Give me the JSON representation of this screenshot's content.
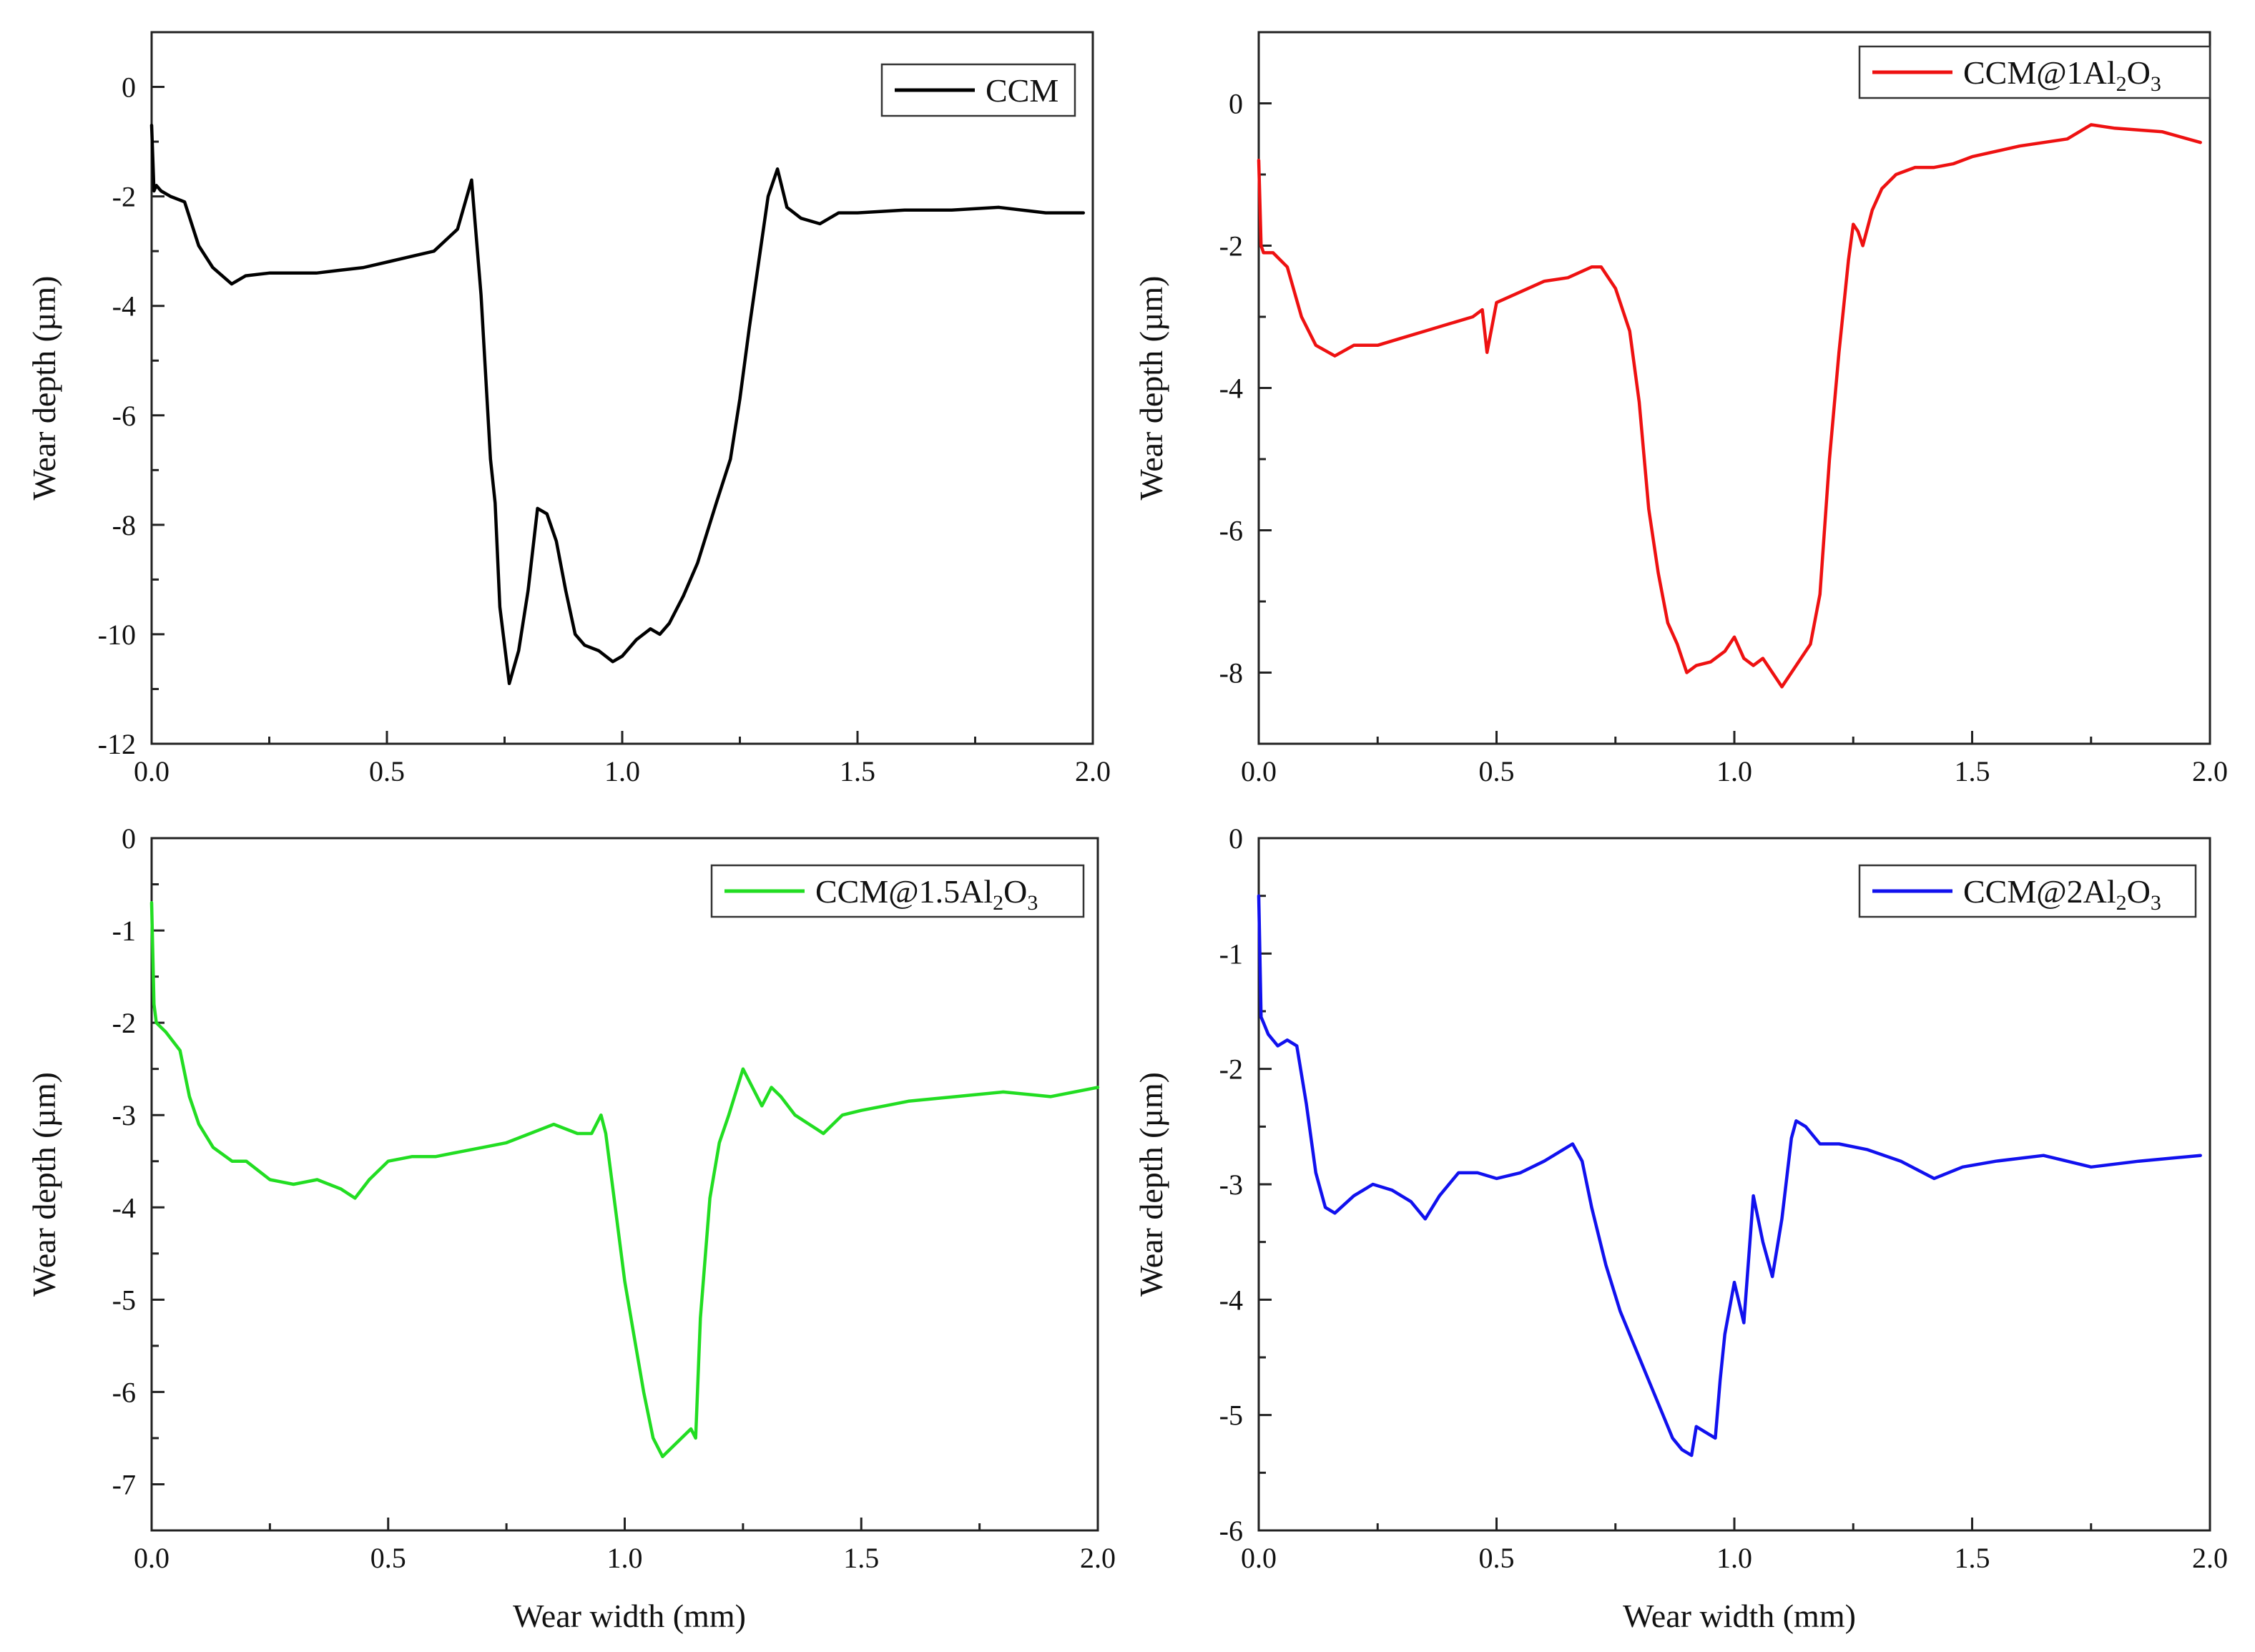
{
  "figure": {
    "xlabel_common": "Wear width (mm)"
  },
  "chart_data": [
    {
      "type": "line",
      "ylabel": "Wear depth (µm)",
      "xlim": [
        0,
        2.0
      ],
      "ylim": [
        -12,
        1
      ],
      "x_ticks": [
        0.0,
        0.5,
        1.0,
        1.5,
        2.0
      ],
      "x_tick_labels": [
        "0.0",
        "0.5",
        "1.0",
        "1.5",
        "2.0"
      ],
      "y_ticks": [
        0,
        -2,
        -4,
        -6,
        -8,
        -10,
        -12
      ],
      "y_tick_labels": [
        "0",
        "-2",
        "-4",
        "-6",
        "-8",
        "-10",
        "-12"
      ],
      "legend": {
        "position": "top-right",
        "main": "CCM",
        "parts": []
      },
      "series": [
        {
          "name": "CCM",
          "color": "#000000",
          "x": [
            0.0,
            0.005,
            0.01,
            0.02,
            0.04,
            0.07,
            0.1,
            0.13,
            0.17,
            0.2,
            0.25,
            0.3,
            0.35,
            0.4,
            0.45,
            0.5,
            0.55,
            0.6,
            0.65,
            0.68,
            0.7,
            0.72,
            0.73,
            0.74,
            0.76,
            0.78,
            0.8,
            0.82,
            0.84,
            0.86,
            0.88,
            0.9,
            0.92,
            0.95,
            0.98,
            1.0,
            1.03,
            1.06,
            1.08,
            1.1,
            1.13,
            1.16,
            1.2,
            1.23,
            1.25,
            1.27,
            1.29,
            1.31,
            1.33,
            1.35,
            1.38,
            1.42,
            1.46,
            1.5,
            1.6,
            1.7,
            1.8,
            1.9,
            1.98
          ],
          "y": [
            -0.7,
            -1.9,
            -1.8,
            -1.9,
            -2.0,
            -2.1,
            -2.9,
            -3.3,
            -3.6,
            -3.45,
            -3.4,
            -3.4,
            -3.4,
            -3.35,
            -3.3,
            -3.2,
            -3.1,
            -3.0,
            -2.6,
            -1.7,
            -3.8,
            -6.8,
            -7.6,
            -9.5,
            -10.9,
            -10.3,
            -9.2,
            -7.7,
            -7.8,
            -8.3,
            -9.2,
            -10.0,
            -10.2,
            -10.3,
            -10.5,
            -10.4,
            -10.1,
            -9.9,
            -10.0,
            -9.8,
            -9.3,
            -8.7,
            -7.6,
            -6.8,
            -5.7,
            -4.4,
            -3.2,
            -2.0,
            -1.5,
            -2.2,
            -2.4,
            -2.5,
            -2.3,
            -2.3,
            -2.25,
            -2.25,
            -2.2,
            -2.3,
            -2.3
          ]
        }
      ]
    },
    {
      "type": "line",
      "ylabel": "Wear depth (µm)",
      "xlim": [
        0,
        2.0
      ],
      "ylim": [
        -9,
        1
      ],
      "x_ticks": [
        0.0,
        0.5,
        1.0,
        1.5,
        2.0
      ],
      "x_tick_labels": [
        "0.0",
        "0.5",
        "1.0",
        "1.5",
        "2.0"
      ],
      "y_ticks": [
        0,
        -2,
        -4,
        -6,
        -8
      ],
      "y_tick_labels": [
        "0",
        "-2",
        "-4",
        "-6",
        "-8"
      ],
      "legend": {
        "position": "top-right",
        "main": "CCM@1Al",
        "parts": [
          "2",
          "O",
          "3"
        ]
      },
      "series": [
        {
          "name": "CCM@1Al2O3",
          "color": "#ee1111",
          "x": [
            0.0,
            0.005,
            0.01,
            0.03,
            0.06,
            0.09,
            0.12,
            0.16,
            0.2,
            0.25,
            0.3,
            0.35,
            0.4,
            0.45,
            0.47,
            0.48,
            0.5,
            0.55,
            0.6,
            0.65,
            0.7,
            0.72,
            0.75,
            0.78,
            0.8,
            0.82,
            0.84,
            0.86,
            0.88,
            0.9,
            0.92,
            0.95,
            0.98,
            1.0,
            1.02,
            1.04,
            1.06,
            1.08,
            1.1,
            1.12,
            1.14,
            1.16,
            1.18,
            1.2,
            1.22,
            1.24,
            1.25,
            1.26,
            1.27,
            1.29,
            1.31,
            1.34,
            1.38,
            1.42,
            1.46,
            1.5,
            1.6,
            1.7,
            1.75,
            1.8,
            1.9,
            1.98
          ],
          "y": [
            -0.8,
            -2.0,
            -2.1,
            -2.1,
            -2.3,
            -3.0,
            -3.4,
            -3.55,
            -3.4,
            -3.4,
            -3.3,
            -3.2,
            -3.1,
            -3.0,
            -2.9,
            -3.5,
            -2.8,
            -2.65,
            -2.5,
            -2.45,
            -2.3,
            -2.3,
            -2.6,
            -3.2,
            -4.2,
            -5.7,
            -6.6,
            -7.3,
            -7.6,
            -8.0,
            -7.9,
            -7.85,
            -7.7,
            -7.5,
            -7.8,
            -7.9,
            -7.8,
            -8.0,
            -8.2,
            -8.0,
            -7.8,
            -7.6,
            -6.9,
            -5.0,
            -3.5,
            -2.2,
            -1.7,
            -1.8,
            -2.0,
            -1.5,
            -1.2,
            -1.0,
            -0.9,
            -0.9,
            -0.85,
            -0.75,
            -0.6,
            -0.5,
            -0.3,
            -0.35,
            -0.4,
            -0.55
          ]
        }
      ]
    },
    {
      "type": "line",
      "ylabel": "Wear depth (µm)",
      "xlim": [
        0,
        2.0
      ],
      "ylim": [
        -7.5,
        0
      ],
      "x_ticks": [
        0.0,
        0.5,
        1.0,
        1.5,
        2.0
      ],
      "x_tick_labels": [
        "0.0",
        "0.5",
        "1.0",
        "1.5",
        "2.0"
      ],
      "y_ticks": [
        0,
        -1,
        -2,
        -3,
        -4,
        -5,
        -6,
        -7
      ],
      "y_tick_labels": [
        "0",
        "-1",
        "-2",
        "-3",
        "-4",
        "-5",
        "-6",
        "-7"
      ],
      "legend": {
        "position": "top-right",
        "main": "CCM@1.5Al",
        "parts": [
          "2",
          "O",
          "3"
        ]
      },
      "series": [
        {
          "name": "CCM@1.5Al2O3",
          "color": "#22dd22",
          "x": [
            0.0,
            0.005,
            0.01,
            0.03,
            0.06,
            0.08,
            0.1,
            0.13,
            0.17,
            0.2,
            0.25,
            0.3,
            0.35,
            0.4,
            0.43,
            0.46,
            0.5,
            0.55,
            0.6,
            0.65,
            0.7,
            0.75,
            0.8,
            0.85,
            0.9,
            0.93,
            0.95,
            0.96,
            0.98,
            1.0,
            1.02,
            1.04,
            1.06,
            1.08,
            1.1,
            1.12,
            1.14,
            1.15,
            1.16,
            1.18,
            1.2,
            1.22,
            1.25,
            1.27,
            1.29,
            1.31,
            1.33,
            1.36,
            1.39,
            1.42,
            1.46,
            1.5,
            1.55,
            1.6,
            1.7,
            1.8,
            1.9,
            2.0
          ],
          "y": [
            -0.7,
            -1.8,
            -2.0,
            -2.1,
            -2.3,
            -2.8,
            -3.1,
            -3.35,
            -3.5,
            -3.5,
            -3.7,
            -3.75,
            -3.7,
            -3.8,
            -3.9,
            -3.7,
            -3.5,
            -3.45,
            -3.45,
            -3.4,
            -3.35,
            -3.3,
            -3.2,
            -3.1,
            -3.2,
            -3.2,
            -3.0,
            -3.2,
            -4.0,
            -4.8,
            -5.4,
            -6.0,
            -6.5,
            -6.7,
            -6.6,
            -6.5,
            -6.4,
            -6.5,
            -5.2,
            -3.9,
            -3.3,
            -3.0,
            -2.5,
            -2.7,
            -2.9,
            -2.7,
            -2.8,
            -3.0,
            -3.1,
            -3.2,
            -3.0,
            -2.95,
            -2.9,
            -2.85,
            -2.8,
            -2.75,
            -2.8,
            -2.7
          ]
        }
      ]
    },
    {
      "type": "line",
      "ylabel": "Wear depth (µm)",
      "xlim": [
        0,
        2.0
      ],
      "ylim": [
        -6,
        0
      ],
      "x_ticks": [
        0.0,
        0.5,
        1.0,
        1.5,
        2.0
      ],
      "x_tick_labels": [
        "0.0",
        "0.5",
        "1.0",
        "1.5",
        "2.0"
      ],
      "y_ticks": [
        0,
        -1,
        -2,
        -3,
        -4,
        -5,
        -6
      ],
      "y_tick_labels": [
        "0",
        "-1",
        "-2",
        "-3",
        "-4",
        "-5",
        "-6"
      ],
      "legend": {
        "position": "top-right",
        "main": "CCM@2Al",
        "parts": [
          "2",
          "O",
          "3"
        ]
      },
      "series": [
        {
          "name": "CCM@2Al2O3",
          "color": "#1111ee",
          "x": [
            0.0,
            0.005,
            0.01,
            0.02,
            0.04,
            0.06,
            0.08,
            0.1,
            0.12,
            0.14,
            0.16,
            0.2,
            0.24,
            0.28,
            0.32,
            0.35,
            0.38,
            0.42,
            0.46,
            0.5,
            0.55,
            0.6,
            0.64,
            0.66,
            0.68,
            0.7,
            0.73,
            0.76,
            0.79,
            0.82,
            0.85,
            0.87,
            0.89,
            0.91,
            0.92,
            0.94,
            0.96,
            0.97,
            0.98,
            1.0,
            1.02,
            1.04,
            1.06,
            1.08,
            1.1,
            1.12,
            1.13,
            1.15,
            1.18,
            1.22,
            1.28,
            1.35,
            1.42,
            1.48,
            1.55,
            1.65,
            1.75,
            1.85,
            1.98
          ],
          "y": [
            -0.5,
            -1.55,
            -1.6,
            -1.7,
            -1.8,
            -1.75,
            -1.8,
            -2.3,
            -2.9,
            -3.2,
            -3.25,
            -3.1,
            -3.0,
            -3.05,
            -3.15,
            -3.3,
            -3.1,
            -2.9,
            -2.9,
            -2.95,
            -2.9,
            -2.8,
            -2.7,
            -2.65,
            -2.8,
            -3.2,
            -3.7,
            -4.1,
            -4.4,
            -4.7,
            -5.0,
            -5.2,
            -5.3,
            -5.35,
            -5.1,
            -5.15,
            -5.2,
            -4.7,
            -4.3,
            -3.85,
            -4.2,
            -3.1,
            -3.5,
            -3.8,
            -3.3,
            -2.6,
            -2.45,
            -2.5,
            -2.65,
            -2.65,
            -2.7,
            -2.8,
            -2.95,
            -2.85,
            -2.8,
            -2.75,
            -2.85,
            -2.8,
            -2.75
          ]
        }
      ]
    }
  ]
}
